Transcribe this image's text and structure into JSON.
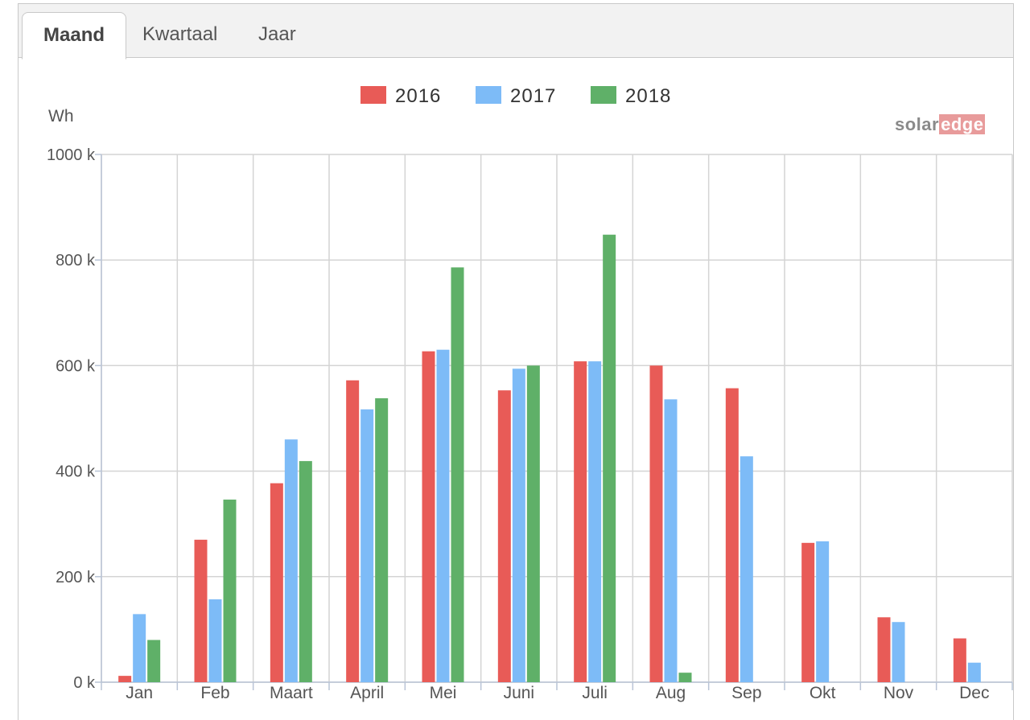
{
  "tabs": [
    {
      "label": "Maand",
      "active": true
    },
    {
      "label": "Kwartaal",
      "active": false
    },
    {
      "label": "Jaar",
      "active": false
    }
  ],
  "brand": {
    "part1": "solar",
    "part2": "edge"
  },
  "colors": {
    "2016": "#e85b57",
    "2017": "#7dbbf7",
    "2018": "#5fb068"
  },
  "chart_data": {
    "type": "bar",
    "ylabel": "Wh",
    "ylim": [
      0,
      1000000
    ],
    "yticks": [
      "0 k",
      "200 k",
      "400 k",
      "600 k",
      "800 k",
      "1000 k"
    ],
    "grid": true,
    "legend": "top-center",
    "categories": [
      "Jan",
      "Feb",
      "Maart",
      "April",
      "Mei",
      "Juni",
      "Juli",
      "Aug",
      "Sep",
      "Okt",
      "Nov",
      "Dec"
    ],
    "series": [
      {
        "name": "2016",
        "values": [
          12000,
          270000,
          377000,
          572000,
          627000,
          553000,
          608000,
          600000,
          557000,
          264000,
          123000,
          83000
        ]
      },
      {
        "name": "2017",
        "values": [
          129000,
          157000,
          460000,
          517000,
          630000,
          594000,
          608000,
          536000,
          428000,
          267000,
          114000,
          37000
        ]
      },
      {
        "name": "2018",
        "values": [
          80000,
          346000,
          419000,
          538000,
          786000,
          600000,
          848000,
          18000,
          null,
          null,
          null,
          null
        ]
      }
    ]
  }
}
